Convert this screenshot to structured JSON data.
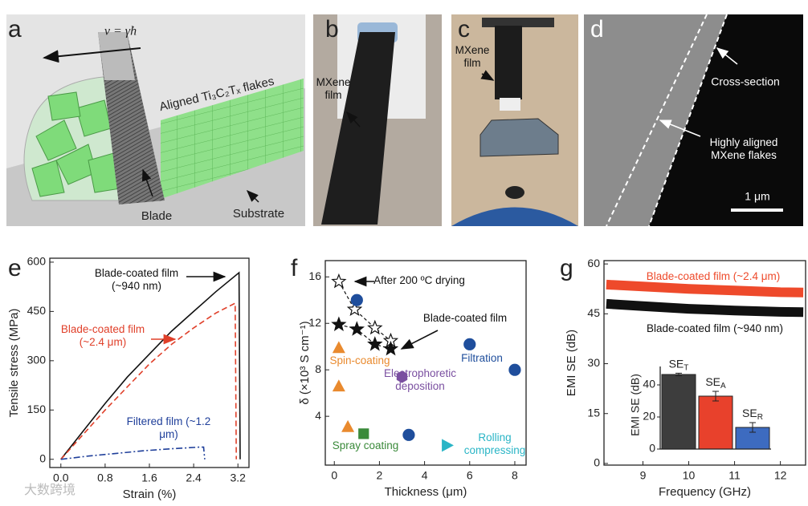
{
  "panels": [
    {
      "label": "a",
      "texts": [
        "v = γ̇h",
        "Aligned Ti₃C₂Tₓ flakes",
        "Blade",
        "Substrate"
      ]
    },
    {
      "label": "b",
      "texts": [
        "MXene film"
      ]
    },
    {
      "label": "c",
      "texts": [
        "MXene film"
      ]
    },
    {
      "label": "d",
      "texts": [
        "Cross-section",
        "Highly aligned MXene flakes",
        "1 μm"
      ]
    }
  ],
  "watermark": "大数跨境",
  "chart_data": [
    {
      "label": "e",
      "type": "line",
      "xlabel": "Strain (%)",
      "ylabel": "Tensile stress (MPa)",
      "xlim": [
        -0.2,
        3.4
      ],
      "xticks": [
        {
          "value": 0,
          "label": "0.0"
        },
        0.8,
        1.6,
        2.4,
        3.2
      ],
      "ylim": [
        -25,
        612
      ],
      "yticks": [
        0,
        150,
        300,
        450,
        600
      ],
      "series": [
        {
          "name": "Blade-coated film (~940 nm)",
          "color": "#111111",
          "dash": "solid",
          "x": [
            0,
            0.4,
            0.8,
            1.2,
            1.6,
            2.0,
            2.4,
            2.8,
            3.22,
            3.24
          ],
          "values": [
            0,
            85,
            170,
            250,
            320,
            390,
            450,
            510,
            568,
            0
          ]
        },
        {
          "name": "Blade-coated film (~2.4 μm)",
          "color": "#e0402a",
          "dash": "dashed",
          "x": [
            0,
            0.4,
            0.8,
            1.2,
            1.6,
            2.0,
            2.4,
            2.8,
            3.15,
            3.17
          ],
          "values": [
            0,
            75,
            150,
            220,
            290,
            350,
            400,
            445,
            475,
            0
          ]
        },
        {
          "name": "Filtered film (~1.2 μm)",
          "color": "#1f3f9a",
          "dash": "dashdot",
          "x": [
            0,
            0.5,
            1.0,
            1.5,
            2.0,
            2.5,
            2.58,
            2.6
          ],
          "values": [
            0,
            10,
            18,
            26,
            32,
            37,
            37,
            0
          ]
        }
      ]
    },
    {
      "label": "f",
      "type": "scatter",
      "xlabel": "Thickness (μm)",
      "ylabel": "δ (×10³ S cm⁻¹)",
      "xlim": [
        -0.4,
        8.5
      ],
      "xticks": [
        0,
        2,
        4,
        6,
        8
      ],
      "ylim": [
        -0.2,
        17.4
      ],
      "yticks": [
        4,
        8,
        12,
        16
      ],
      "series": [
        {
          "name": "After 200 ºC drying",
          "color": "#111111",
          "marker": "star-open",
          "connect": true,
          "x": [
            0.2,
            0.9,
            1.8,
            2.5
          ],
          "values": [
            15.6,
            13.2,
            11.6,
            10.5
          ]
        },
        {
          "name": "Blade-coated film",
          "color": "#111111",
          "marker": "star",
          "connect": true,
          "x": [
            0.2,
            1.0,
            1.8,
            2.5
          ],
          "values": [
            11.9,
            11.5,
            10.2,
            9.8
          ]
        },
        {
          "name": "Filtration",
          "color": "#1f4e9c",
          "marker": "circle",
          "connect": false,
          "x": [
            1.0,
            3.3,
            6.0,
            8.0
          ],
          "values": [
            14.0,
            2.4,
            10.2,
            8.0
          ]
        },
        {
          "name": "Spin-coating",
          "color": "#e98a2e",
          "marker": "triangle",
          "connect": false,
          "x": [
            0.2,
            0.2,
            0.6
          ],
          "values": [
            9.9,
            6.6,
            3.1
          ]
        },
        {
          "name": "Electrophoretic deposition",
          "color": "#7a4fa0",
          "marker": "hexagon",
          "connect": false,
          "x": [
            3.0
          ],
          "values": [
            7.4
          ]
        },
        {
          "name": "Spray coating",
          "color": "#3a8a3a",
          "marker": "square",
          "connect": false,
          "x": [
            1.3
          ],
          "values": [
            2.5
          ]
        },
        {
          "name": "Rolling compressing",
          "color": "#2ab5c6",
          "marker": "triangle-right",
          "connect": false,
          "x": [
            5.0
          ],
          "values": [
            1.5
          ]
        }
      ]
    },
    {
      "label": "g",
      "type": "line",
      "xlabel": "Frequency (GHz)",
      "ylabel": "EMI SE (dB)",
      "xlim": [
        8.15,
        12.55
      ],
      "xticks": [
        9,
        10,
        11,
        12
      ],
      "ylim": [
        -0.5,
        61
      ],
      "yticks": [
        0,
        15,
        30,
        45,
        60
      ],
      "x": [
        8.2,
        9,
        10,
        11,
        12,
        12.5
      ],
      "series": [
        {
          "name": "Blade-coated film (~2.4 μm)",
          "color": "#ee4a2b",
          "values": [
            53.8,
            53.2,
            52.5,
            52,
            51.5,
            51.4
          ]
        },
        {
          "name": "Blade-coated film (~940 nm)",
          "color": "#111111",
          "values": [
            48,
            47.3,
            46.5,
            46,
            45.6,
            45.5
          ]
        }
      ]
    },
    {
      "type": "bar",
      "ylabel": "EMI SE (dB)",
      "ylim": [
        0,
        51.5
      ],
      "yticks": [
        0,
        20,
        40
      ],
      "categories": [
        {
          "text": "SE",
          "sub": "T"
        },
        {
          "text": "SE",
          "sub": "A"
        },
        {
          "text": "SE",
          "sub": "R"
        }
      ],
      "values": [
        46.5,
        33,
        13.5
      ],
      "errors": [
        0.8,
        3,
        3
      ],
      "colors": [
        "#3d3d3d",
        "#e8412c",
        "#3d6bc0"
      ]
    }
  ]
}
